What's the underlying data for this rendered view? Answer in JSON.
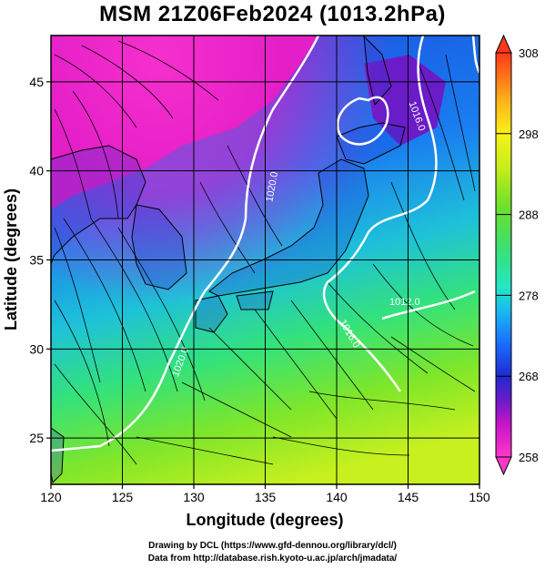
{
  "title": "MSM 21Z06Feb2024 (1013.2hPa)",
  "xlabel": "Longitude (degrees)",
  "ylabel": "Latitude  (degrees)",
  "credits": {
    "line1": "Drawing by DCL (https://www.gfd-dennou.org/library/dcl/)",
    "line2": "Data from http://database.rish.kyoto-u.ac.jp/arch/jmadata/"
  },
  "map": {
    "lon_range": [
      120,
      150
    ],
    "lat_range": [
      22.4,
      47.6
    ],
    "lon_ticks": [
      120,
      125,
      130,
      135,
      140,
      145,
      150
    ],
    "lat_ticks": [
      25,
      30,
      35,
      40,
      45
    ],
    "grid": true
  },
  "colorbar": {
    "range": [
      258,
      308
    ],
    "ticks": [
      258,
      268,
      278,
      288,
      298,
      308
    ],
    "colors": [
      "#ff38c8",
      "#c814c8",
      "#6a1cc8",
      "#1f2ad0",
      "#1a6cff",
      "#19b8f0",
      "#24e6c4",
      "#3ce070",
      "#6ee02a",
      "#c8ee1a",
      "#f8f01a",
      "#ffb41a",
      "#ff6a1a",
      "#ff3a1a"
    ]
  },
  "isobars": [
    {
      "label": "1020.0"
    },
    {
      "label": "1016.0"
    },
    {
      "label": "1012.0"
    },
    {
      "label": "1016.0"
    },
    {
      "label": "1020.0"
    }
  ],
  "colors": {
    "isobar": "#ffffff",
    "coast": "#000000",
    "streamline": "#000000"
  }
}
